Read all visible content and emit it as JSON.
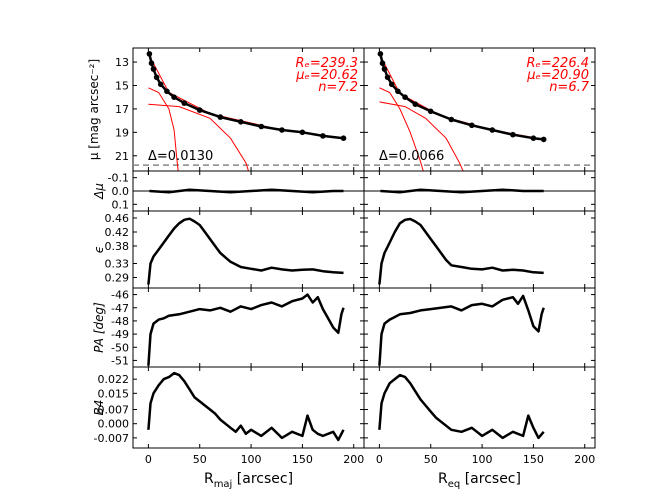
{
  "chart_data": {
    "type": "line",
    "description_layout": "2 columns x 5 rows of panels with shared y axes per row",
    "columns": [
      {
        "name": "major-axis",
        "xlabel_main": "R",
        "xlabel_sub": "maj",
        "xlabel_unit": " [arcsec]",
        "xlim": [
          -15,
          210
        ],
        "xticks": [
          "0",
          "50",
          "100",
          "150",
          "200"
        ],
        "fit_text": [
          "Rₑ=239.3",
          "μₑ=20.62",
          "n=7.2"
        ],
        "delta_text": "Δ=0.0130",
        "rmax": 190
      },
      {
        "name": "equivalent-axis",
        "xlabel_main": "R",
        "xlabel_sub": "eq",
        "xlabel_unit": " [arcsec]",
        "xlim": [
          -15,
          210
        ],
        "xticks": [
          "0",
          "50",
          "100",
          "150",
          "200"
        ],
        "fit_text": [
          "Rₑ=226.4",
          "μₑ=20.90",
          "n=6.7"
        ],
        "delta_text": "Δ=0.0066",
        "rmax": 160
      }
    ],
    "rows": [
      {
        "key": "mu",
        "ylabel": "μ [mag arcsec⁻²]",
        "ylim": [
          22.3,
          11.8
        ],
        "yticks": [
          13,
          15,
          17,
          19,
          21
        ],
        "yticklabels": [
          "13",
          "15",
          "17",
          "19",
          "21"
        ],
        "dashed_level": 21.8,
        "series": [
          {
            "name": "major",
            "x": [
              1,
              3,
              5,
              8,
              12,
              18,
              25,
              35,
              50,
              70,
              90,
              110,
              130,
              150,
              170,
              190
            ],
            "y": [
              12.3,
              13.1,
              13.6,
              14.3,
              14.9,
              15.5,
              16.0,
              16.5,
              17.1,
              17.7,
              18.1,
              18.5,
              18.8,
              19.0,
              19.3,
              19.5
            ]
          },
          {
            "name": "equivalent",
            "x": [
              1,
              3,
              5,
              8,
              12,
              18,
              25,
              35,
              50,
              70,
              90,
              110,
              130,
              150,
              160
            ],
            "y": [
              12.3,
              13.1,
              13.6,
              14.3,
              14.9,
              15.5,
              16.0,
              16.6,
              17.2,
              17.9,
              18.4,
              18.8,
              19.2,
              19.5,
              19.6
            ]
          }
        ]
      },
      {
        "key": "dmu",
        "ylabel": "Δμ",
        "ylim": [
          0.15,
          -0.15
        ],
        "yticks": [
          -0.1,
          0.0,
          0.1
        ],
        "yticklabels": [
          "-0.1",
          "0.0",
          "0.1"
        ],
        "series": [
          {
            "name": "major",
            "x": [
              1,
              20,
              40,
              60,
              80,
              100,
              120,
              140,
              160,
              180,
              190
            ],
            "y": [
              0.0,
              0.01,
              -0.01,
              0.0,
              0.01,
              0.0,
              -0.01,
              0.0,
              0.01,
              0.0,
              0.0
            ]
          },
          {
            "name": "equivalent",
            "x": [
              1,
              20,
              40,
              60,
              80,
              100,
              120,
              140,
              160
            ],
            "y": [
              0.0,
              0.01,
              -0.01,
              0.0,
              0.01,
              0.0,
              -0.01,
              0.0,
              0.0
            ]
          }
        ]
      },
      {
        "key": "eps",
        "ylabel": "ϵ",
        "ylim": [
          0.26,
          0.48
        ],
        "yticks": [
          0.29,
          0.33,
          0.38,
          0.42,
          0.46
        ],
        "yticklabels": [
          "0.29",
          "0.33",
          "0.38",
          "0.42",
          "0.46"
        ],
        "series": [
          {
            "name": "major",
            "x": [
              0,
              2,
              5,
              10,
              15,
              20,
              25,
              30,
              35,
              40,
              45,
              50,
              55,
              60,
              65,
              70,
              80,
              90,
              100,
              110,
              120,
              130,
              140,
              150,
              160,
              170,
              180,
              190
            ],
            "y": [
              0.27,
              0.33,
              0.35,
              0.37,
              0.39,
              0.41,
              0.43,
              0.445,
              0.455,
              0.458,
              0.45,
              0.44,
              0.42,
              0.4,
              0.38,
              0.36,
              0.335,
              0.32,
              0.315,
              0.31,
              0.318,
              0.313,
              0.31,
              0.312,
              0.313,
              0.308,
              0.305,
              0.303
            ]
          },
          {
            "name": "equivalent",
            "x": [
              0,
              2,
              5,
              10,
              15,
              20,
              25,
              30,
              35,
              40,
              45,
              50,
              55,
              60,
              65,
              70,
              80,
              90,
              100,
              110,
              120,
              130,
              140,
              150,
              160
            ],
            "y": [
              0.27,
              0.33,
              0.36,
              0.39,
              0.42,
              0.445,
              0.455,
              0.457,
              0.45,
              0.44,
              0.42,
              0.4,
              0.38,
              0.36,
              0.34,
              0.325,
              0.32,
              0.315,
              0.313,
              0.318,
              0.31,
              0.312,
              0.31,
              0.305,
              0.303
            ]
          }
        ]
      },
      {
        "key": "pa",
        "ylabel": "PA [deg]",
        "ylim": [
          -51.5,
          -45.5
        ],
        "yticks": [
          -46,
          -47,
          -48,
          -49,
          -50,
          -51
        ],
        "yticklabels": [
          "-46",
          "-47",
          "-48",
          "-49",
          "-50",
          "-51"
        ],
        "series": [
          {
            "name": "major",
            "x": [
              0,
              2,
              5,
              10,
              15,
              20,
              30,
              40,
              50,
              60,
              70,
              80,
              90,
              100,
              110,
              120,
              130,
              140,
              150,
              155,
              160,
              165,
              170,
              175,
              180,
              185,
              188,
              190
            ],
            "y": [
              -51.4,
              -49.0,
              -48.2,
              -47.9,
              -47.8,
              -47.6,
              -47.5,
              -47.3,
              -47.1,
              -47.2,
              -47.0,
              -47.3,
              -46.9,
              -47.1,
              -46.8,
              -46.6,
              -46.9,
              -46.5,
              -46.3,
              -46.0,
              -46.6,
              -46.2,
              -47.1,
              -47.8,
              -48.5,
              -48.9,
              -47.5,
              -47.0
            ]
          },
          {
            "name": "equivalent",
            "x": [
              0,
              2,
              5,
              10,
              15,
              20,
              30,
              40,
              50,
              60,
              70,
              80,
              90,
              100,
              110,
              120,
              130,
              135,
              140,
              145,
              150,
              155,
              158,
              160
            ],
            "y": [
              -51.4,
              -49.0,
              -48.2,
              -47.9,
              -47.7,
              -47.5,
              -47.4,
              -47.2,
              -47.1,
              -47.0,
              -46.9,
              -47.2,
              -46.8,
              -46.7,
              -46.9,
              -46.4,
              -46.2,
              -46.7,
              -46.1,
              -47.2,
              -48.4,
              -48.8,
              -47.5,
              -47.0
            ]
          }
        ]
      },
      {
        "key": "b4",
        "ylabel": "B4",
        "ylim": [
          -0.012,
          0.028
        ],
        "yticks": [
          0.022,
          0.015,
          0.007,
          0.0,
          -0.007
        ],
        "yticklabels": [
          "0.022",
          "0.015",
          "0.007",
          "0.000",
          "-0.007"
        ],
        "series": [
          {
            "name": "major",
            "x": [
              0,
              2,
              5,
              10,
              15,
              20,
              25,
              30,
              35,
              40,
              45,
              50,
              55,
              60,
              65,
              70,
              75,
              80,
              85,
              90,
              95,
              100,
              110,
              120,
              130,
              140,
              150,
              155,
              160,
              165,
              170,
              180,
              185,
              190
            ],
            "y": [
              -0.003,
              0.01,
              0.015,
              0.019,
              0.022,
              0.023,
              0.025,
              0.024,
              0.021,
              0.017,
              0.013,
              0.011,
              0.009,
              0.007,
              0.005,
              0.002,
              0.0,
              -0.002,
              -0.004,
              -0.001,
              -0.005,
              -0.003,
              -0.006,
              -0.002,
              -0.007,
              -0.004,
              -0.006,
              0.004,
              -0.003,
              -0.005,
              -0.006,
              -0.004,
              -0.008,
              -0.003
            ]
          },
          {
            "name": "equivalent",
            "x": [
              0,
              2,
              5,
              10,
              15,
              20,
              25,
              30,
              35,
              40,
              45,
              50,
              55,
              60,
              65,
              70,
              80,
              90,
              100,
              110,
              120,
              130,
              140,
              145,
              150,
              155,
              160
            ],
            "y": [
              -0.003,
              0.01,
              0.015,
              0.02,
              0.022,
              0.024,
              0.023,
              0.02,
              0.016,
              0.012,
              0.009,
              0.006,
              0.003,
              0.001,
              -0.001,
              -0.003,
              -0.004,
              -0.002,
              -0.006,
              -0.003,
              -0.007,
              -0.004,
              -0.006,
              0.004,
              -0.002,
              -0.007,
              -0.004
            ]
          }
        ]
      }
    ]
  }
}
